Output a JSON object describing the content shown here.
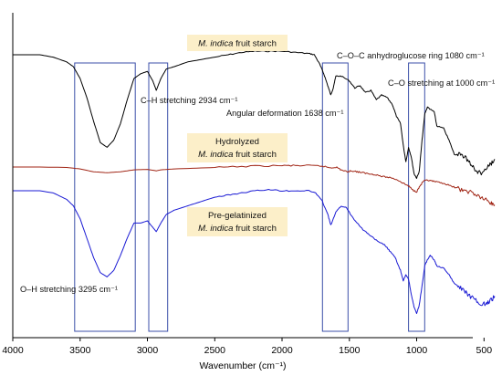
{
  "chart_data": {
    "type": "line",
    "xlabel": "Wavenumber (cm⁻¹)",
    "xlim": [
      4000,
      400
    ],
    "x_reversed": true,
    "x_ticks": [
      "4000",
      "3500",
      "3000",
      "2500",
      "2000",
      "1500",
      "1000",
      "500"
    ],
    "series": [
      {
        "name": "M. indica fruit starch",
        "label_parts": [
          "",
          "M. indica",
          " fruit starch"
        ],
        "color": "#000000",
        "points": [
          [
            4000,
            0.0
          ],
          [
            3900,
            0.0
          ],
          [
            3800,
            0.0
          ],
          [
            3700,
            0.02
          ],
          [
            3600,
            0.06
          ],
          [
            3550,
            0.1
          ],
          [
            3500,
            0.2
          ],
          [
            3450,
            0.36
          ],
          [
            3400,
            0.56
          ],
          [
            3350,
            0.74
          ],
          [
            3300,
            0.78
          ],
          [
            3250,
            0.72
          ],
          [
            3200,
            0.58
          ],
          [
            3150,
            0.38
          ],
          [
            3100,
            0.2
          ],
          [
            3050,
            0.16
          ],
          [
            3000,
            0.14
          ],
          [
            2960,
            0.22
          ],
          [
            2934,
            0.3
          ],
          [
            2900,
            0.2
          ],
          [
            2860,
            0.12
          ],
          [
            2800,
            0.1
          ],
          [
            2700,
            0.06
          ],
          [
            2600,
            0.04
          ],
          [
            2500,
            0.02
          ],
          [
            2400,
            0.0
          ],
          [
            2300,
            -0.02
          ],
          [
            2200,
            -0.03
          ],
          [
            2100,
            -0.03
          ],
          [
            2000,
            -0.03
          ],
          [
            1900,
            -0.02
          ],
          [
            1800,
            -0.01
          ],
          [
            1760,
            0.0
          ],
          [
            1720,
            0.08
          ],
          [
            1690,
            0.16
          ],
          [
            1660,
            0.26
          ],
          [
            1638,
            0.34
          ],
          [
            1620,
            0.28
          ],
          [
            1600,
            0.18
          ],
          [
            1560,
            0.18
          ],
          [
            1500,
            0.22
          ],
          [
            1460,
            0.28
          ],
          [
            1420,
            0.26
          ],
          [
            1380,
            0.32
          ],
          [
            1340,
            0.3
          ],
          [
            1300,
            0.38
          ],
          [
            1260,
            0.34
          ],
          [
            1220,
            0.36
          ],
          [
            1180,
            0.42
          ],
          [
            1150,
            0.52
          ],
          [
            1120,
            0.58
          ],
          [
            1100,
            0.76
          ],
          [
            1080,
            0.9
          ],
          [
            1060,
            0.78
          ],
          [
            1040,
            0.86
          ],
          [
            1020,
            1.0
          ],
          [
            1000,
            1.04
          ],
          [
            980,
            0.98
          ],
          [
            960,
            0.72
          ],
          [
            940,
            0.5
          ],
          [
            920,
            0.44
          ],
          [
            900,
            0.46
          ],
          [
            870,
            0.48
          ],
          [
            850,
            0.6
          ],
          [
            800,
            0.62
          ],
          [
            760,
            0.72
          ],
          [
            720,
            0.84
          ],
          [
            680,
            0.84
          ],
          [
            640,
            0.86
          ],
          [
            600,
            0.92
          ],
          [
            560,
            0.98
          ],
          [
            520,
            1.0
          ],
          [
            480,
            0.96
          ],
          [
            450,
            0.92
          ],
          [
            420,
            0.88
          ]
        ]
      },
      {
        "name": "Hydrolyzed M. indica fruit starch",
        "label_parts": [
          "Hydrolyzed",
          "M. indica",
          " fruit starch"
        ],
        "color": "#a02414",
        "points": [
          [
            4000,
            0.0
          ],
          [
            3800,
            0.0
          ],
          [
            3600,
            0.01
          ],
          [
            3500,
            0.04
          ],
          [
            3400,
            0.1
          ],
          [
            3300,
            0.12
          ],
          [
            3200,
            0.1
          ],
          [
            3100,
            0.06
          ],
          [
            3000,
            0.05
          ],
          [
            2934,
            0.08
          ],
          [
            2900,
            0.06
          ],
          [
            2800,
            0.04
          ],
          [
            2600,
            0.02
          ],
          [
            2400,
            0.0
          ],
          [
            2200,
            -0.02
          ],
          [
            2000,
            -0.03
          ],
          [
            1900,
            -0.03
          ],
          [
            1800,
            -0.03
          ],
          [
            1700,
            -0.02
          ],
          [
            1638,
            0.02
          ],
          [
            1600,
            0.0
          ],
          [
            1560,
            0.06
          ],
          [
            1520,
            0.1
          ],
          [
            1480,
            0.08
          ],
          [
            1440,
            0.1
          ],
          [
            1400,
            0.12
          ],
          [
            1360,
            0.14
          ],
          [
            1300,
            0.16
          ],
          [
            1260,
            0.2
          ],
          [
            1200,
            0.22
          ],
          [
            1150,
            0.26
          ],
          [
            1100,
            0.34
          ],
          [
            1060,
            0.4
          ],
          [
            1030,
            0.48
          ],
          [
            1000,
            0.52
          ],
          [
            980,
            0.42
          ],
          [
            950,
            0.3
          ],
          [
            920,
            0.28
          ],
          [
            880,
            0.3
          ],
          [
            850,
            0.32
          ],
          [
            800,
            0.34
          ],
          [
            750,
            0.4
          ],
          [
            700,
            0.44
          ],
          [
            650,
            0.5
          ],
          [
            600,
            0.52
          ],
          [
            560,
            0.58
          ],
          [
            520,
            0.64
          ],
          [
            480,
            0.7
          ],
          [
            450,
            0.76
          ],
          [
            420,
            0.8
          ]
        ]
      },
      {
        "name": "Pre-gelatinized M. indica fruit starch",
        "label_parts": [
          "Pre-gelatinized",
          "M. indica",
          " fruit starch"
        ],
        "color": "#1a1ad4",
        "points": [
          [
            4000,
            0.0
          ],
          [
            3900,
            0.0
          ],
          [
            3800,
            0.0
          ],
          [
            3700,
            0.02
          ],
          [
            3600,
            0.08
          ],
          [
            3550,
            0.14
          ],
          [
            3500,
            0.26
          ],
          [
            3450,
            0.44
          ],
          [
            3400,
            0.62
          ],
          [
            3350,
            0.76
          ],
          [
            3300,
            0.8
          ],
          [
            3250,
            0.74
          ],
          [
            3200,
            0.6
          ],
          [
            3150,
            0.44
          ],
          [
            3100,
            0.3
          ],
          [
            3050,
            0.3
          ],
          [
            3000,
            0.28
          ],
          [
            2960,
            0.34
          ],
          [
            2934,
            0.38
          ],
          [
            2900,
            0.3
          ],
          [
            2860,
            0.22
          ],
          [
            2800,
            0.18
          ],
          [
            2700,
            0.14
          ],
          [
            2600,
            0.1
          ],
          [
            2500,
            0.06
          ],
          [
            2400,
            0.04
          ],
          [
            2300,
            0.02
          ],
          [
            2200,
            0.0
          ],
          [
            2100,
            -0.01
          ],
          [
            2000,
            0.0
          ],
          [
            1900,
            0.0
          ],
          [
            1800,
            0.0
          ],
          [
            1750,
            0.02
          ],
          [
            1700,
            0.1
          ],
          [
            1660,
            0.22
          ],
          [
            1638,
            0.32
          ],
          [
            1600,
            0.2
          ],
          [
            1560,
            0.14
          ],
          [
            1520,
            0.16
          ],
          [
            1480,
            0.24
          ],
          [
            1440,
            0.3
          ],
          [
            1400,
            0.36
          ],
          [
            1360,
            0.4
          ],
          [
            1320,
            0.44
          ],
          [
            1280,
            0.48
          ],
          [
            1240,
            0.5
          ],
          [
            1200,
            0.56
          ],
          [
            1160,
            0.62
          ],
          [
            1120,
            0.74
          ],
          [
            1100,
            0.84
          ],
          [
            1080,
            0.78
          ],
          [
            1060,
            0.82
          ],
          [
            1040,
            0.96
          ],
          [
            1020,
            1.08
          ],
          [
            1000,
            1.14
          ],
          [
            980,
            1.06
          ],
          [
            960,
            0.88
          ],
          [
            940,
            0.7
          ],
          [
            920,
            0.64
          ],
          [
            900,
            0.6
          ],
          [
            870,
            0.64
          ],
          [
            850,
            0.7
          ],
          [
            800,
            0.72
          ],
          [
            760,
            0.78
          ],
          [
            720,
            0.86
          ],
          [
            680,
            0.9
          ],
          [
            640,
            0.94
          ],
          [
            600,
            0.98
          ],
          [
            560,
            1.02
          ],
          [
            520,
            1.06
          ],
          [
            480,
            1.04
          ],
          [
            450,
            1.02
          ],
          [
            420,
            0.98
          ]
        ]
      }
    ],
    "bands": [
      {
        "from": 3540,
        "to": 3090
      },
      {
        "from": 2990,
        "to": 2850
      },
      {
        "from": 1700,
        "to": 1510
      },
      {
        "from": 1060,
        "to": 940
      }
    ],
    "annotations": [
      {
        "text": "C–H stretching 2934 cm⁻¹"
      },
      {
        "text": "Angular deformation 1638 cm⁻¹"
      },
      {
        "text": "C–O–C anhydroglucose ring 1080 cm⁻¹"
      },
      {
        "text": "C–O stretching at 1000 cm⁻¹"
      },
      {
        "text": "O–H stretching 3295 cm⁻¹"
      }
    ]
  }
}
